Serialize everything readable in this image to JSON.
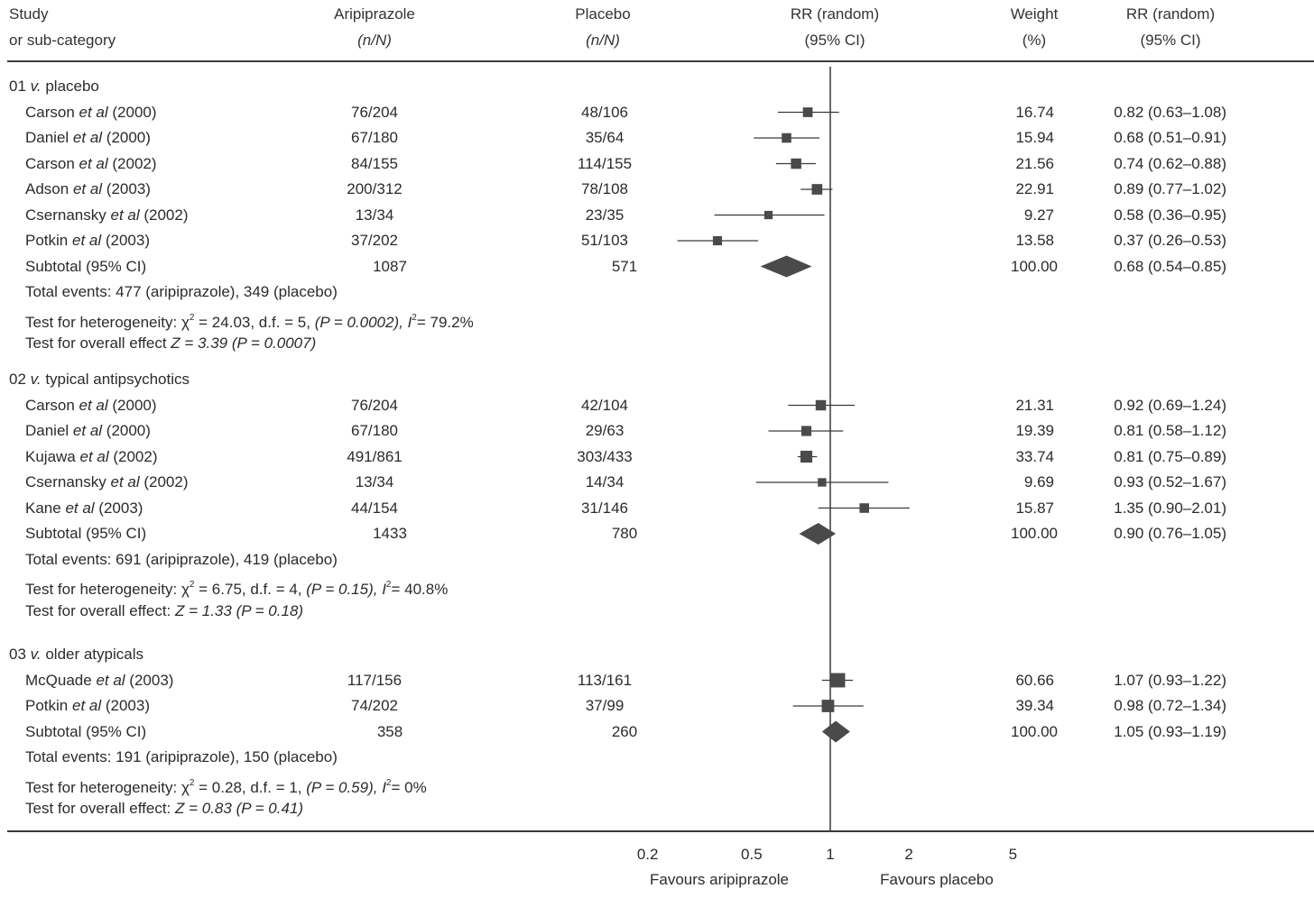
{
  "chart_data": {
    "type": "forest",
    "headers": {
      "study": [
        "Study",
        "or sub-category"
      ],
      "treatment": [
        "Aripiprazole",
        "(n/N)"
      ],
      "control": [
        "Placebo",
        "(n/N)"
      ],
      "plot": [
        "RR (random)",
        "(95% CI)"
      ],
      "weight": [
        "Weight",
        "(%)"
      ],
      "rr": [
        "RR (random)",
        "(95% CI)"
      ]
    },
    "x_scale": "log",
    "xlim": [
      0.2,
      5
    ],
    "ticks": [
      "0.2",
      "0.5",
      "1",
      "2",
      "5"
    ],
    "tick_values": [
      0.2,
      0.5,
      1,
      2,
      5
    ],
    "xlabel_left": "Favours aripiprazole",
    "xlabel_right": "Favours placebo",
    "groups": [
      {
        "title": "01 v. placebo",
        "studies": [
          {
            "author": "Carson",
            "year": "(2000)",
            "treatment": "76/204",
            "control": "48/106",
            "weight": "16.74",
            "rr_text": "0.82 (0.63–1.08)",
            "rr": 0.82,
            "lo": 0.63,
            "hi": 1.08
          },
          {
            "author": "Daniel",
            "year": "(2000)",
            "treatment": "67/180",
            "control": "35/64",
            "weight": "15.94",
            "rr_text": "0.68 (0.51–0.91)",
            "rr": 0.68,
            "lo": 0.51,
            "hi": 0.91
          },
          {
            "author": "Carson",
            "year": "(2002)",
            "treatment": "84/155",
            "control": "114/155",
            "weight": "21.56",
            "rr_text": "0.74 (0.62–0.88)",
            "rr": 0.74,
            "lo": 0.62,
            "hi": 0.88
          },
          {
            "author": "Adson",
            "year": "(2003)",
            "treatment": "200/312",
            "control": "78/108",
            "weight": "22.91",
            "rr_text": "0.89 (0.77–1.02)",
            "rr": 0.89,
            "lo": 0.77,
            "hi": 1.02
          },
          {
            "author": "Csernansky",
            "year": "(2002)",
            "treatment": "13/34",
            "control": "23/35",
            "weight": "9.27",
            "rr_text": "0.58 (0.36–0.95)",
            "rr": 0.58,
            "lo": 0.36,
            "hi": 0.95
          },
          {
            "author": "Potkin",
            "year": "(2003)",
            "treatment": "37/202",
            "control": "51/103",
            "weight": "13.58",
            "rr_text": "0.37 (0.26–0.53)",
            "rr": 0.37,
            "lo": 0.26,
            "hi": 0.53
          }
        ],
        "subtotal": {
          "label": "Subtotal (95% CI)",
          "treatment": "1087",
          "control": "571",
          "weight": "100.00",
          "rr_text": "0.68 (0.54–0.85)",
          "rr": 0.68,
          "lo": 0.54,
          "hi": 0.85
        },
        "events": {
          "label": "Total events:",
          "treatment": "477",
          "treatment_label": "(aripiprazole),",
          "control": "349",
          "control_label": "(placebo)"
        },
        "heterogeneity": {
          "prefix": "Test for heterogeneity:",
          "chi2": "χ",
          "chi2_value": "= 24.03, d.f. = 5",
          "p": "(P = 0.0002),",
          "i2": "I",
          "i2_value": "= 79.2%"
        },
        "overall": {
          "prefix": "Test for overall effect",
          "z": "Z = 3.39",
          "p": "(P = 0.0007)"
        }
      },
      {
        "title": "02 v. typical antipsychotics",
        "studies": [
          {
            "author": "Carson",
            "year": "(2000)",
            "treatment": "76/204",
            "control": "42/104",
            "weight": "21.31",
            "rr_text": "0.92 (0.69–1.24)",
            "rr": 0.92,
            "lo": 0.69,
            "hi": 1.24
          },
          {
            "author": "Daniel",
            "year": "(2000)",
            "treatment": "67/180",
            "control": "29/63",
            "weight": "19.39",
            "rr_text": "0.81 (0.58–1.12)",
            "rr": 0.81,
            "lo": 0.58,
            "hi": 1.12
          },
          {
            "author": "Kujawa",
            "year": "(2002)",
            "treatment": "491/861",
            "control": "303/433",
            "weight": "33.74",
            "rr_text": "0.81 (0.75–0.89)",
            "rr": 0.81,
            "lo": 0.75,
            "hi": 0.89
          },
          {
            "author": "Csernansky",
            "year": "(2002)",
            "treatment": "13/34",
            "control": "14/34",
            "weight": "9.69",
            "rr_text": "0.93 (0.52–1.67)",
            "rr": 0.93,
            "lo": 0.52,
            "hi": 1.67
          },
          {
            "author": "Kane",
            "year": "(2003)",
            "treatment": "44/154",
            "control": "31/146",
            "weight": "15.87",
            "rr_text": "1.35 (0.90–2.01)",
            "rr": 1.35,
            "lo": 0.9,
            "hi": 2.01
          }
        ],
        "subtotal": {
          "label": "Subtotal (95% CI)",
          "treatment": "1433",
          "control": "780",
          "weight": "100.00",
          "rr_text": "0.90 (0.76–1.05)",
          "rr": 0.9,
          "lo": 0.76,
          "hi": 1.05
        },
        "events": {
          "label": "Total events:",
          "treatment": "691",
          "treatment_label": "(aripiprazole),",
          "control": "419",
          "control_label": "(placebo)"
        },
        "heterogeneity": {
          "prefix": "Test for heterogeneity:",
          "chi2": "χ",
          "chi2_value": "= 6.75, d.f. = 4",
          "p": "(P = 0.15),",
          "i2": "I",
          "i2_value": "= 40.8%"
        },
        "overall": {
          "prefix": "Test for overall effect:",
          "z": "Z = 1.33",
          "p": "(P = 0.18)"
        }
      },
      {
        "title": "03 v. older atypicals",
        "studies": [
          {
            "author": "McQuade",
            "year": "(2003)",
            "treatment": "117/156",
            "control": "113/161",
            "weight": "60.66",
            "rr_text": "1.07 (0.93–1.22)",
            "rr": 1.07,
            "lo": 0.93,
            "hi": 1.22
          },
          {
            "author": "Potkin",
            "year": "(2003)",
            "treatment": "74/202",
            "control": "37/99",
            "weight": "39.34",
            "rr_text": "0.98 (0.72–1.34)",
            "rr": 0.98,
            "lo": 0.72,
            "hi": 1.34
          }
        ],
        "subtotal": {
          "label": "Subtotal (95% CI)",
          "treatment": "358",
          "control": "260",
          "weight": "100.00",
          "rr_text": "1.05 (0.93–1.19)",
          "rr": 1.05,
          "lo": 0.93,
          "hi": 1.19
        },
        "events": {
          "label": "Total events:",
          "treatment": "191",
          "treatment_label": "(aripiprazole),",
          "control": "150",
          "control_label": "(placebo)"
        },
        "heterogeneity": {
          "prefix": "Test for heterogeneity:",
          "chi2": "χ",
          "chi2_value": "= 0.28, d.f. = 1",
          "p": "(P = 0.59),",
          "i2": "I",
          "i2_value": "= 0%"
        },
        "overall": {
          "prefix": "Test for overall effect:",
          "z": "Z = 0.83",
          "p": "(P = 0.41)"
        }
      }
    ],
    "et_al": "et al",
    "superscript_2": "2",
    "colors": {
      "marker": "#4a4a4a",
      "line": "#3a3a3a",
      "text": "#2b2b2b"
    }
  }
}
